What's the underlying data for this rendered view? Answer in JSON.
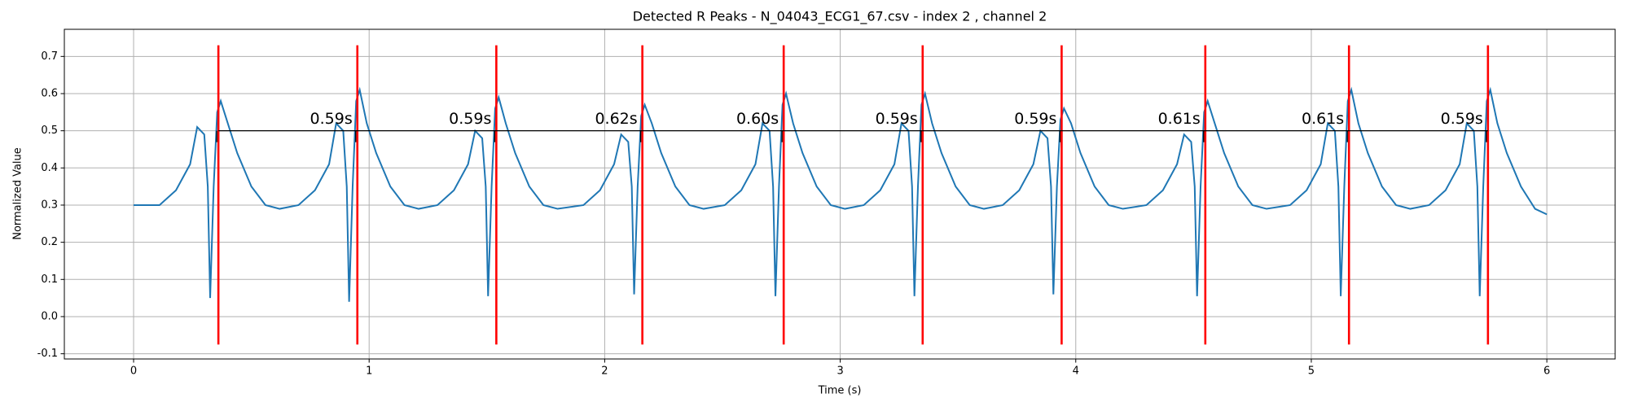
{
  "chart_data": {
    "type": "line",
    "title": "Detected R Peaks - N_04043_ECG1_67.csv - index 2 , channel 2",
    "xlabel": "Time (s)",
    "ylabel": "Normalized Value",
    "xlim": [
      -0.294,
      6.29
    ],
    "ylim": [
      -0.114,
      0.773
    ],
    "xticks": [
      0,
      1,
      2,
      3,
      4,
      5,
      6
    ],
    "yticks": [
      -0.1,
      {
        "value": 0,
        "label": "0.0"
      },
      0.1,
      0.2,
      0.3,
      0.4,
      0.5,
      0.6,
      0.7
    ],
    "grid": true,
    "x": [
      0,
      0.05,
      0.11,
      0.18,
      0.24,
      0.27,
      0.3,
      0.315,
      0.325,
      0.34,
      0.355,
      0.37,
      0.4,
      0.44,
      0.5,
      0.56,
      0.62,
      0.7,
      0.77,
      0.83,
      0.86,
      0.89,
      0.905,
      0.915,
      0.93,
      0.945,
      0.96,
      0.99,
      1.03,
      1.09,
      1.15,
      1.21,
      1.29,
      1.36,
      1.42,
      1.45,
      1.48,
      1.495,
      1.505,
      1.52,
      1.535,
      1.55,
      1.58,
      1.62,
      1.68,
      1.74,
      1.8,
      1.91,
      1.98,
      2.04,
      2.07,
      2.1,
      2.115,
      2.125,
      2.14,
      2.155,
      2.17,
      2.2,
      2.24,
      2.3,
      2.36,
      2.42,
      2.51,
      2.58,
      2.64,
      2.67,
      2.7,
      2.715,
      2.725,
      2.74,
      2.755,
      2.77,
      2.8,
      2.84,
      2.9,
      2.96,
      3.02,
      3.1,
      3.17,
      3.23,
      3.26,
      3.29,
      3.305,
      3.315,
      3.33,
      3.345,
      3.36,
      3.39,
      3.43,
      3.49,
      3.55,
      3.61,
      3.69,
      3.76,
      3.82,
      3.85,
      3.88,
      3.895,
      3.905,
      3.92,
      3.935,
      3.95,
      3.98,
      4.02,
      4.08,
      4.14,
      4.2,
      4.3,
      4.37,
      4.43,
      4.46,
      4.49,
      4.505,
      4.515,
      4.53,
      4.545,
      4.56,
      4.59,
      4.63,
      4.69,
      4.75,
      4.81,
      4.91,
      4.98,
      5.04,
      5.07,
      5.1,
      5.115,
      5.125,
      5.14,
      5.155,
      5.17,
      5.2,
      5.24,
      5.3,
      5.36,
      5.42,
      5.5,
      5.57,
      5.63,
      5.66,
      5.69,
      5.705,
      5.715,
      5.73,
      5.745,
      5.76,
      5.79,
      5.83,
      5.89,
      5.95,
      6.0
    ],
    "series": [
      {
        "color": "#1f77b4",
        "values": [
          0.3,
          0.3,
          0.3,
          0.34,
          0.41,
          0.51,
          0.49,
          0.35,
          0.05,
          0.35,
          0.55,
          0.58,
          0.52,
          0.44,
          0.35,
          0.3,
          0.29,
          0.3,
          0.34,
          0.41,
          0.52,
          0.5,
          0.35,
          0.04,
          0.35,
          0.58,
          0.61,
          0.52,
          0.44,
          0.35,
          0.3,
          0.29,
          0.3,
          0.34,
          0.41,
          0.5,
          0.48,
          0.35,
          0.055,
          0.35,
          0.56,
          0.59,
          0.52,
          0.44,
          0.35,
          0.3,
          0.29,
          0.3,
          0.34,
          0.41,
          0.49,
          0.47,
          0.35,
          0.06,
          0.35,
          0.54,
          0.57,
          0.52,
          0.44,
          0.35,
          0.3,
          0.29,
          0.3,
          0.34,
          0.41,
          0.52,
          0.5,
          0.35,
          0.055,
          0.35,
          0.57,
          0.6,
          0.52,
          0.44,
          0.35,
          0.3,
          0.29,
          0.3,
          0.34,
          0.41,
          0.52,
          0.5,
          0.35,
          0.055,
          0.35,
          0.57,
          0.6,
          0.52,
          0.44,
          0.35,
          0.3,
          0.29,
          0.3,
          0.34,
          0.41,
          0.5,
          0.48,
          0.35,
          0.06,
          0.35,
          0.53,
          0.56,
          0.52,
          0.44,
          0.35,
          0.3,
          0.29,
          0.3,
          0.34,
          0.41,
          0.49,
          0.47,
          0.35,
          0.055,
          0.35,
          0.55,
          0.58,
          0.52,
          0.44,
          0.35,
          0.3,
          0.29,
          0.3,
          0.34,
          0.41,
          0.52,
          0.5,
          0.35,
          0.055,
          0.35,
          0.58,
          0.61,
          0.52,
          0.44,
          0.35,
          0.3,
          0.29,
          0.3,
          0.34,
          0.41,
          0.52,
          0.5,
          0.35,
          0.055,
          0.35,
          0.58,
          0.61,
          0.52,
          0.44,
          0.35,
          0.29,
          0.275
        ]
      }
    ],
    "peaks": {
      "x": [
        0.36,
        0.95,
        1.54,
        2.16,
        2.76,
        3.35,
        3.94,
        4.55,
        5.16,
        5.75
      ],
      "ymin": -0.075,
      "ymax": 0.73,
      "color": "#ff0000"
    },
    "intervals": {
      "y": 0.5,
      "color": "#000000",
      "values": [
        0.59,
        0.59,
        0.62,
        0.6,
        0.59,
        0.59,
        0.61,
        0.61,
        0.59
      ],
      "value_labels": [
        "0.59s",
        "0.59s",
        "0.62s",
        "0.60s",
        "0.59s",
        "0.59s",
        "0.61s",
        "0.61s",
        "0.59s"
      ]
    }
  }
}
